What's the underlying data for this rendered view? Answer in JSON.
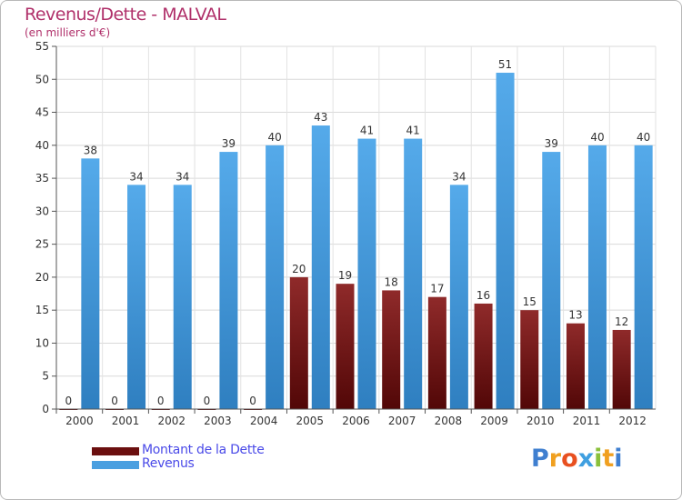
{
  "header": {
    "title": "Revenus/Dette - MALVAL",
    "subtitle": "(en milliers d'€)"
  },
  "legend": {
    "items": [
      {
        "label": "Montant de la Dette",
        "color": "#6b0f0f"
      },
      {
        "label": "Revenus",
        "color": "#4a9fe0"
      }
    ]
  },
  "logo": {
    "letters": [
      {
        "ch": "P",
        "color": "#3f7fd0"
      },
      {
        "ch": "r",
        "color": "#f0a020"
      },
      {
        "ch": "o",
        "color": "#e85020"
      },
      {
        "ch": "x",
        "color": "#3f9fe0"
      },
      {
        "ch": "i",
        "color": "#8ac03a"
      },
      {
        "ch": "t",
        "color": "#f0a020"
      },
      {
        "ch": "i",
        "color": "#3f7fd0"
      }
    ]
  },
  "chart_data": {
    "type": "bar",
    "title": "Revenus/Dette - MALVAL",
    "subtitle": "(en milliers d'€)",
    "categories": [
      "2000",
      "2001",
      "2002",
      "2003",
      "2004",
      "2005",
      "2006",
      "2007",
      "2008",
      "2009",
      "2010",
      "2011",
      "2012"
    ],
    "series": [
      {
        "name": "Montant de la Dette",
        "color": "#6b0f0f",
        "values": [
          0,
          0,
          0,
          0,
          0,
          20,
          19,
          18,
          17,
          16,
          15,
          13,
          12
        ]
      },
      {
        "name": "Revenus",
        "color": "#4a9fe0",
        "values": [
          38,
          34,
          34,
          39,
          40,
          43,
          41,
          41,
          34,
          51,
          39,
          40,
          40
        ]
      }
    ],
    "ylim": [
      0,
      55
    ],
    "yticks": [
      0,
      5,
      10,
      15,
      20,
      25,
      30,
      35,
      40,
      45,
      50,
      55
    ],
    "grid": true,
    "legend_position": "bottom-left"
  }
}
